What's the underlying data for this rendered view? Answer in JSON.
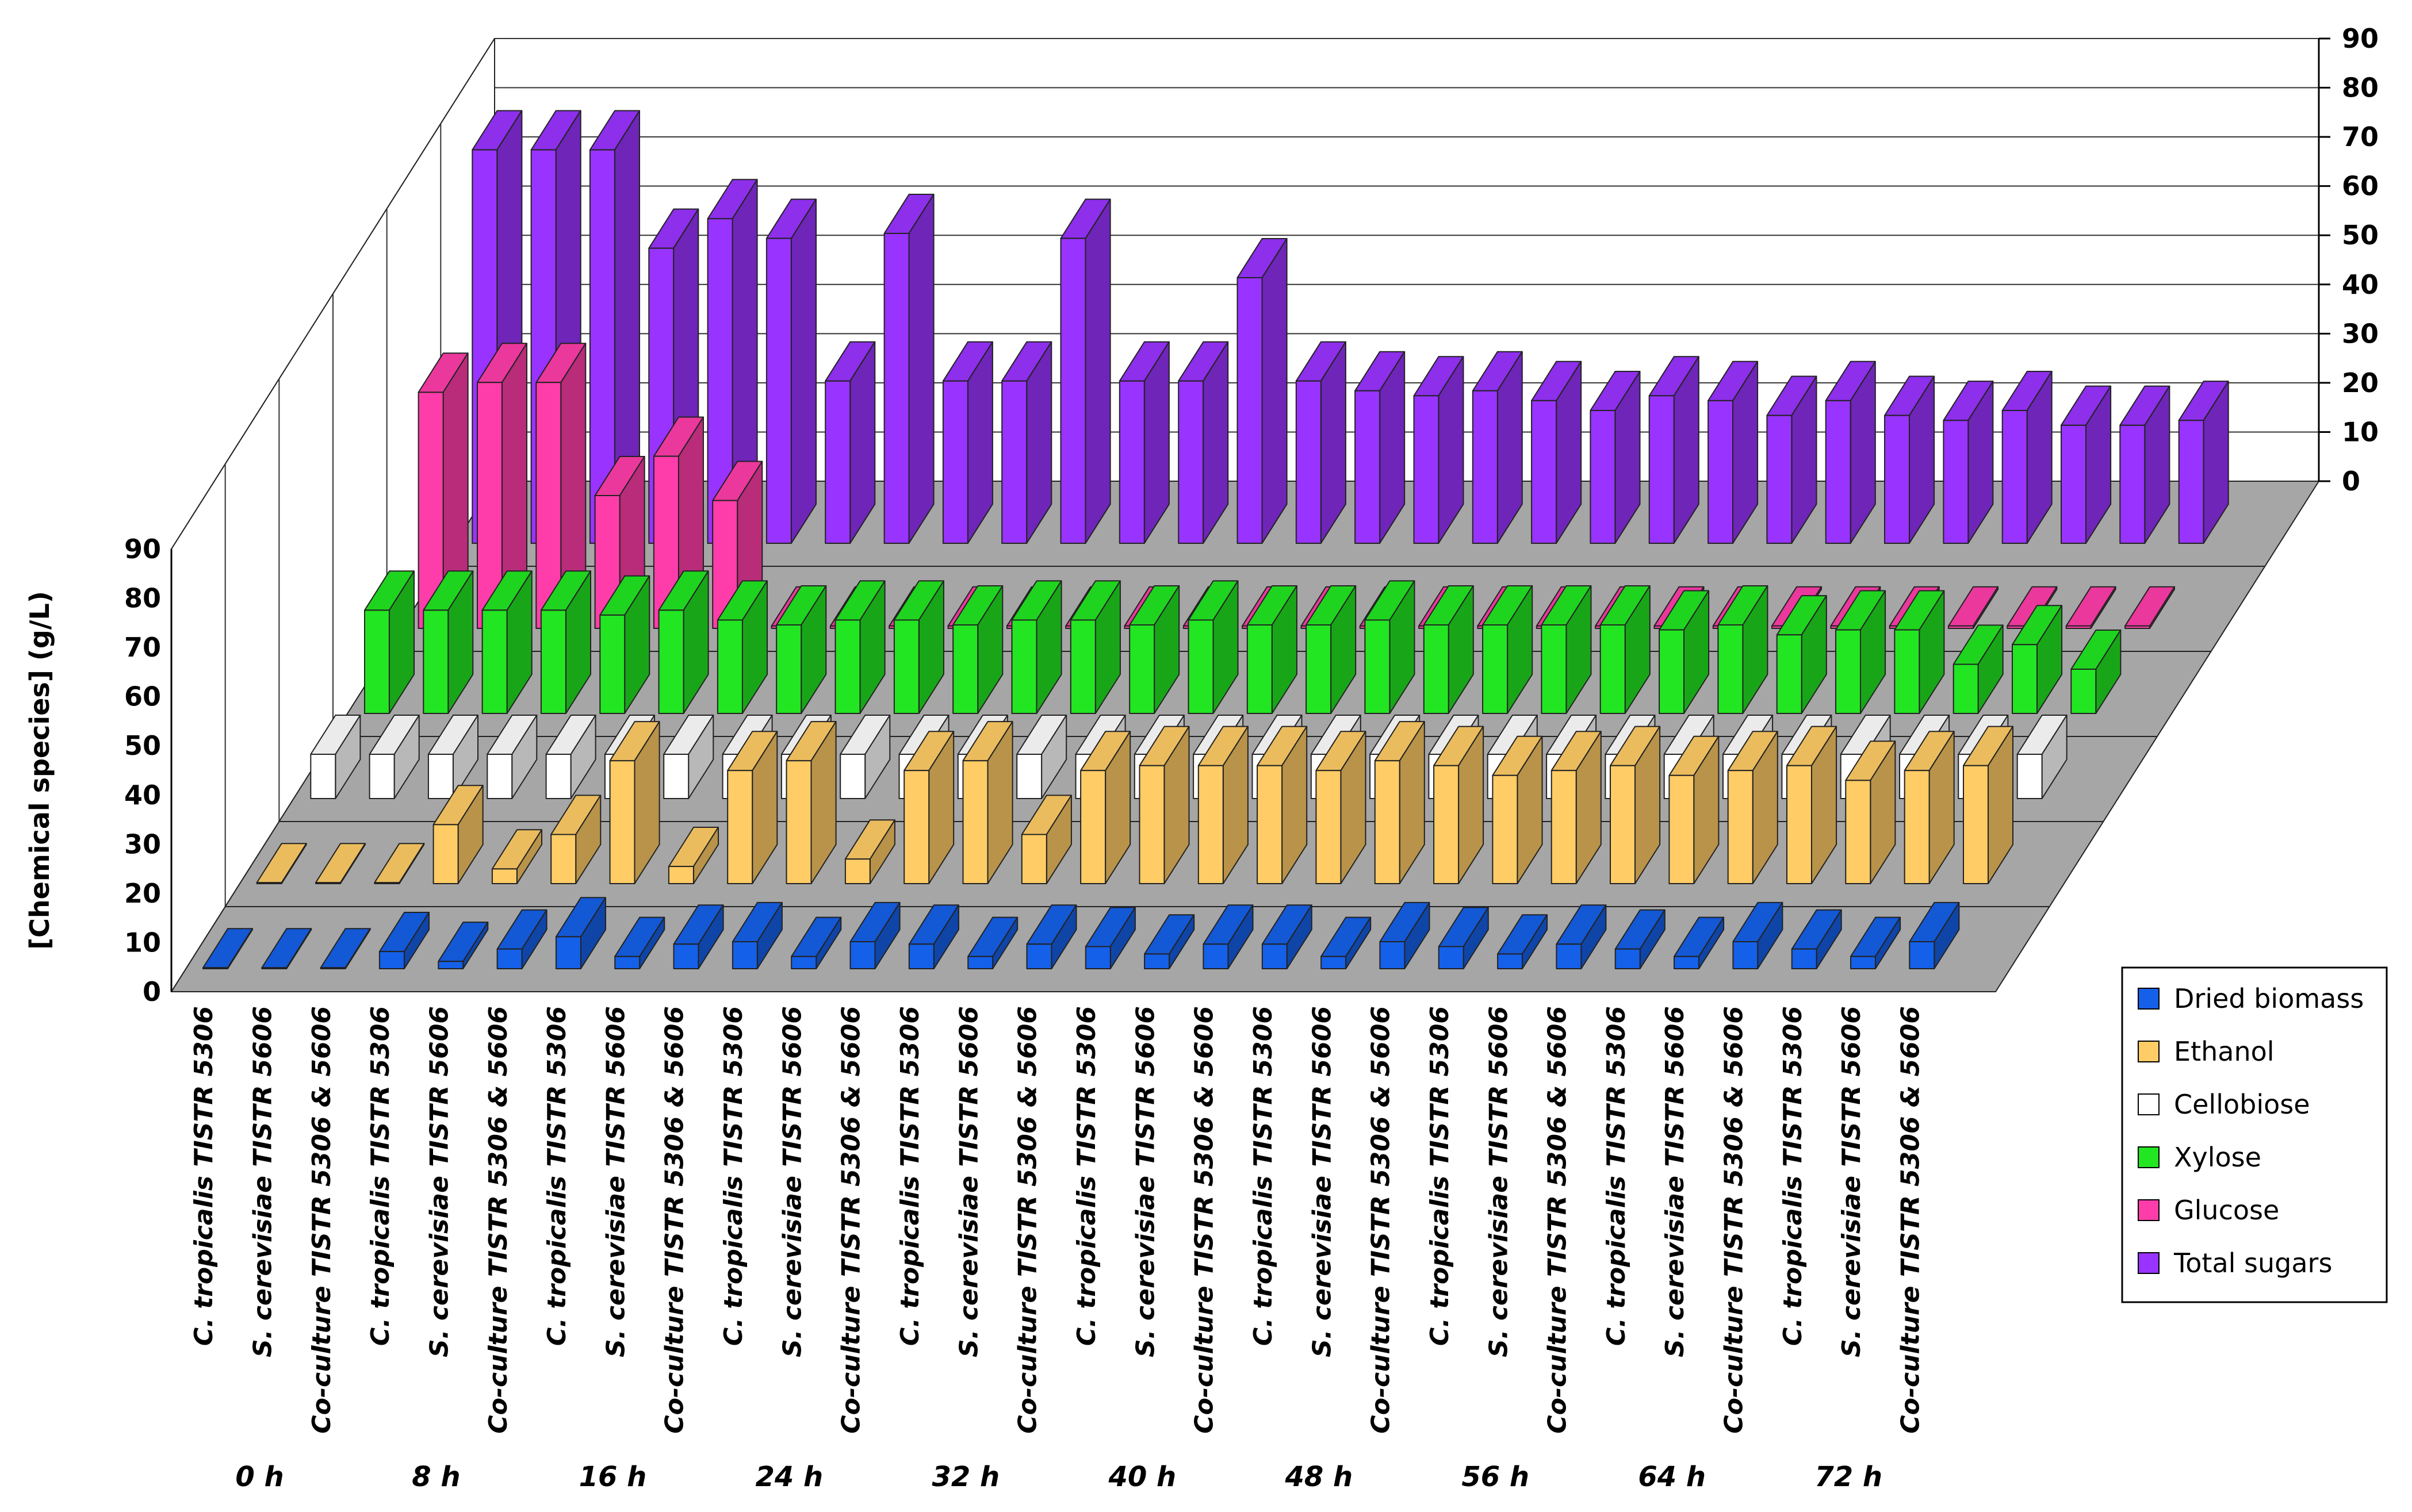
{
  "chart_data": {
    "type": "bar3d",
    "ylabel": "[Chemical species]  (g/L)",
    "ylim": [
      0,
      90
    ],
    "yticks": [
      "0",
      "10",
      "20",
      "30",
      "40",
      "50",
      "60",
      "70",
      "80",
      "90"
    ],
    "time_points": [
      "0 h",
      "8 h",
      "16 h",
      "24 h",
      "32 h",
      "40 h",
      "48 h",
      "56 h",
      "64 h",
      "72 h"
    ],
    "cultures": [
      [
        "C. tropicalis",
        "TISTR 5306"
      ],
      [
        "S. cerevisiae",
        "TISTR 5606"
      ],
      [
        "Co-culture",
        "TISTR 5306 & 5606"
      ]
    ],
    "legend_order": [
      "Dried biomass",
      "Ethanol",
      "Cellobiose",
      "Xylose",
      "Glucose",
      "Total sugars"
    ],
    "series": [
      {
        "name": "Dried biomass",
        "color": "#1560E8",
        "values": [
          [
            0.2,
            0.2,
            0.2
          ],
          [
            3.5,
            1.5,
            4
          ],
          [
            6.5,
            2.5,
            5
          ],
          [
            5.5,
            2.5,
            5.5
          ],
          [
            5,
            2.5,
            5
          ],
          [
            4.5,
            3,
            5
          ],
          [
            5,
            2.5,
            5.5
          ],
          [
            4.5,
            3,
            5
          ],
          [
            4,
            2.5,
            5.5
          ],
          [
            4,
            2.5,
            5.5
          ]
        ]
      },
      {
        "name": "Ethanol",
        "color": "#FFCC66",
        "values": [
          [
            0.2,
            0.2,
            0.2
          ],
          [
            12,
            3,
            10
          ],
          [
            25,
            3.5,
            23
          ],
          [
            25,
            5,
            23
          ],
          [
            25,
            10,
            23
          ],
          [
            24,
            24,
            24
          ],
          [
            23,
            25,
            24
          ],
          [
            22,
            23,
            24
          ],
          [
            22,
            23,
            24
          ],
          [
            21,
            23,
            24
          ]
        ]
      },
      {
        "name": "Cellobiose",
        "color": "#FFFFFF",
        "values": [
          [
            9,
            9,
            9
          ],
          [
            9,
            9,
            9
          ],
          [
            9,
            9,
            9
          ],
          [
            9,
            9,
            9
          ],
          [
            9,
            9,
            9
          ],
          [
            9,
            9,
            9
          ],
          [
            9,
            9,
            9
          ],
          [
            9,
            9,
            9
          ],
          [
            9,
            9,
            9
          ],
          [
            9,
            9,
            9
          ]
        ]
      },
      {
        "name": "Xylose",
        "color": "#22E622",
        "values": [
          [
            21,
            21,
            21
          ],
          [
            21,
            20,
            21
          ],
          [
            19,
            18,
            19
          ],
          [
            19,
            18,
            19
          ],
          [
            19,
            18,
            19
          ],
          [
            18,
            18,
            19
          ],
          [
            18,
            18,
            18
          ],
          [
            18,
            17,
            18
          ],
          [
            16,
            17,
            17
          ],
          [
            10,
            14,
            9
          ]
        ]
      },
      {
        "name": "Glucose",
        "color": "#FF3DAA",
        "values": [
          [
            48,
            50,
            50
          ],
          [
            27,
            35,
            26
          ],
          [
            0.5,
            0.5,
            0.5
          ],
          [
            0.5,
            0.5,
            0.5
          ],
          [
            0.5,
            0.5,
            0.5
          ],
          [
            0.5,
            0.5,
            0.5
          ],
          [
            0.5,
            0.5,
            0.5
          ],
          [
            0.5,
            0.5,
            0.5
          ],
          [
            0.5,
            0.5,
            0.5
          ],
          [
            0.5,
            0.5,
            0.5
          ]
        ]
      },
      {
        "name": "Total sugars",
        "color": "#9933FF",
        "values": [
          [
            80,
            80,
            80
          ],
          [
            60,
            66,
            62
          ],
          [
            33,
            63,
            33
          ],
          [
            33,
            62,
            33
          ],
          [
            33,
            54,
            33
          ],
          [
            31,
            30,
            31
          ],
          [
            29,
            27,
            30
          ],
          [
            29,
            26,
            29
          ],
          [
            26,
            25,
            27
          ],
          [
            24,
            24,
            25
          ]
        ]
      }
    ]
  }
}
